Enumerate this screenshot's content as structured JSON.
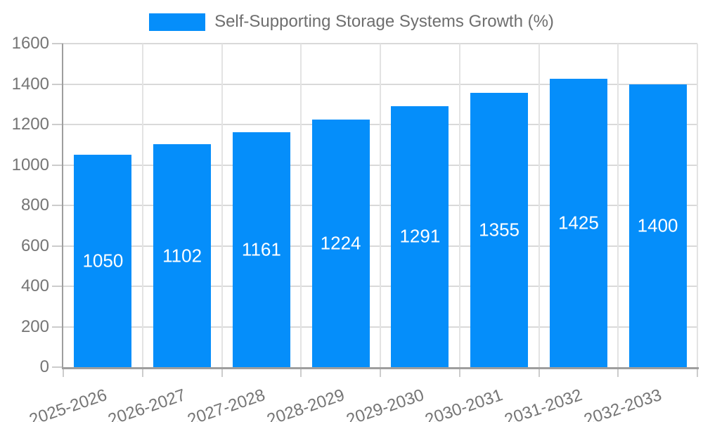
{
  "legend": {
    "label": "Self-Supporting Storage Systems Growth (%)"
  },
  "chart_data": {
    "type": "bar",
    "title": "Self-Supporting Storage Systems Growth (%)",
    "categories": [
      "2025-2026",
      "2026-2027",
      "2027-2028",
      "2028-2029",
      "2029-2030",
      "2030-2031",
      "2031-2032",
      "2032-2033"
    ],
    "values": [
      1050,
      1102,
      1161,
      1224,
      1291,
      1355,
      1425,
      1400
    ],
    "xlabel": "",
    "ylabel": "",
    "ylim": [
      0,
      1600
    ],
    "yticks": [
      0,
      200,
      400,
      600,
      800,
      1000,
      1200,
      1400,
      1600
    ],
    "grid": true,
    "legend_position": "top-center",
    "bar_color": "#058EFA",
    "value_label_color": "#ffffff",
    "axis_text_color": "#757575"
  }
}
